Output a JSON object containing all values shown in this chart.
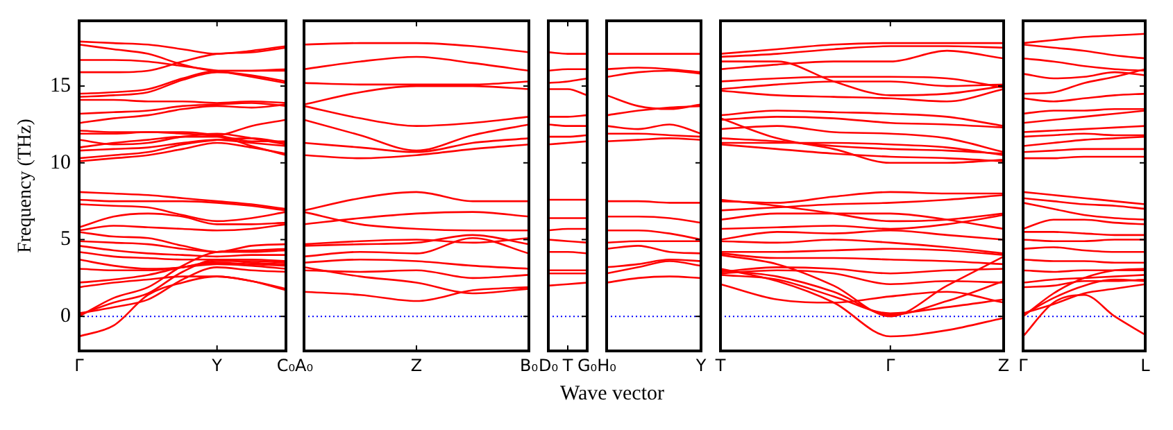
{
  "chart_data": [
    {
      "type": "line",
      "ylabel": "Frequency (THz)",
      "ylim": [
        -2.25,
        19.25
      ],
      "yticks": [
        0,
        5,
        10,
        15
      ],
      "categories": [
        "Γ",
        null,
        null,
        null,
        "Y",
        null,
        "C₀"
      ],
      "marker": "none",
      "ref_lines": [
        {
          "axis": "y",
          "value": 0,
          "color": "#0000ff",
          "line_style": "dotted"
        }
      ],
      "series": [
        {
          "color": "#ff0000",
          "values": [
            17.9,
            17.8,
            17.7,
            17.4,
            17.1,
            17.3,
            17.6
          ]
        },
        {
          "color": "#ff0000",
          "values": [
            17.7,
            17.4,
            17.1,
            16.4,
            16.0,
            16.0,
            16.1
          ]
        },
        {
          "color": "#ff0000",
          "values": [
            16.7,
            16.7,
            16.6,
            16.3,
            16.0,
            15.6,
            15.2
          ]
        },
        {
          "color": "#ff0000",
          "values": [
            15.9,
            15.9,
            16.0,
            16.6,
            17.1,
            17.2,
            17.5
          ]
        },
        {
          "color": "#ff0000",
          "values": [
            14.5,
            14.6,
            14.8,
            15.5,
            16.0,
            16.0,
            16.0
          ]
        },
        {
          "color": "#ff0000",
          "values": [
            14.3,
            14.4,
            14.6,
            15.4,
            15.9,
            15.7,
            15.3
          ]
        },
        {
          "color": "#ff0000",
          "values": [
            14.1,
            14.1,
            14.0,
            14.0,
            13.9,
            14.0,
            13.9
          ]
        },
        {
          "color": "#ff0000",
          "values": [
            13.2,
            13.3,
            13.4,
            13.7,
            13.8,
            13.9,
            13.7
          ]
        },
        {
          "color": "#ff0000",
          "values": [
            12.6,
            12.9,
            13.1,
            13.5,
            13.7,
            13.6,
            13.8
          ]
        },
        {
          "color": "#ff0000",
          "values": [
            12.1,
            12.0,
            12.0,
            11.9,
            11.8,
            12.4,
            12.8
          ]
        },
        {
          "color": "#ff0000",
          "values": [
            11.9,
            11.9,
            12.0,
            12.0,
            11.8,
            11.4,
            11.4
          ]
        },
        {
          "color": "#ff0000",
          "values": [
            11.5,
            11.2,
            11.3,
            11.7,
            11.9,
            11.6,
            11.2
          ]
        },
        {
          "color": "#ff0000",
          "values": [
            11.0,
            11.3,
            11.5,
            11.7,
            11.7,
            11.1,
            10.5
          ]
        },
        {
          "color": "#ff0000",
          "values": [
            10.8,
            10.9,
            11.0,
            11.3,
            11.5,
            11.3,
            11.1
          ]
        },
        {
          "color": "#ff0000",
          "values": [
            10.3,
            10.5,
            10.7,
            11.2,
            11.5,
            11.6,
            11.3
          ]
        },
        {
          "color": "#ff0000",
          "values": [
            10.1,
            10.3,
            10.5,
            10.9,
            11.3,
            11.0,
            10.6
          ]
        },
        {
          "color": "#ff0000",
          "values": [
            8.1,
            8.0,
            7.9,
            7.7,
            7.5,
            7.3,
            7.0
          ]
        },
        {
          "color": "#ff0000",
          "values": [
            7.6,
            7.5,
            7.5,
            7.5,
            7.4,
            7.2,
            6.9
          ]
        },
        {
          "color": "#ff0000",
          "values": [
            7.3,
            7.2,
            7.1,
            6.6,
            6.2,
            6.4,
            6.8
          ]
        },
        {
          "color": "#ff0000",
          "values": [
            5.8,
            6.5,
            6.7,
            6.5,
            6.0,
            6.0,
            6.1
          ]
        },
        {
          "color": "#ff0000",
          "values": [
            5.6,
            5.9,
            5.8,
            5.7,
            5.6,
            5.7,
            6.0
          ]
        },
        {
          "color": "#ff0000",
          "values": [
            5.5,
            5.2,
            5.1,
            4.6,
            4.2,
            4.6,
            4.7
          ]
        },
        {
          "color": "#ff0000",
          "values": [
            4.9,
            4.8,
            4.7,
            4.4,
            4.2,
            4.2,
            4.3
          ]
        },
        {
          "color": "#ff0000",
          "values": [
            4.6,
            4.3,
            4.1,
            4.0,
            3.9,
            4.0,
            4.0
          ]
        },
        {
          "color": "#ff0000",
          "values": [
            4.2,
            3.9,
            3.8,
            3.7,
            3.7,
            3.7,
            3.6
          ]
        },
        {
          "color": "#ff0000",
          "values": [
            3.7,
            3.3,
            3.1,
            3.2,
            3.6,
            3.6,
            3.5
          ]
        },
        {
          "color": "#ff0000",
          "values": [
            3.1,
            3.0,
            3.0,
            3.2,
            3.4,
            3.3,
            3.1
          ]
        },
        {
          "color": "#ff0000",
          "values": [
            2.2,
            2.4,
            2.7,
            3.2,
            3.5,
            3.4,
            3.3
          ]
        },
        {
          "color": "#ff0000",
          "values": [
            1.9,
            2.2,
            2.4,
            2.6,
            2.6,
            2.3,
            1.8
          ]
        },
        {
          "color": "#ff0000",
          "values": [
            0,
            1.2,
            1.9,
            3.3,
            4.2,
            4.3,
            4.4
          ]
        },
        {
          "color": "#ff0000",
          "values": [
            0.1,
            0.9,
            1.5,
            2.9,
            3.7,
            3.5,
            3.4
          ]
        },
        {
          "color": "#ff0000",
          "values": [
            0.2,
            0.6,
            1.1,
            2.4,
            3.2,
            3.0,
            2.9
          ]
        },
        {
          "color": "#ff0000",
          "values": [
            -1.3,
            -0.6,
            1.4,
            2.2,
            2.6,
            2.3,
            1.7
          ]
        }
      ]
    },
    {
      "type": "line",
      "tick_labels": "x",
      "ylim": [
        -2.25,
        19.25
      ],
      "yticks": [
        0,
        5,
        10,
        15
      ],
      "categories": [
        "A₀",
        null,
        "Z",
        null,
        "B₀"
      ],
      "marker": "none",
      "ref_lines": [
        {
          "axis": "y",
          "value": 0,
          "color": "#0000ff",
          "line_style": "dotted"
        }
      ],
      "series": [
        {
          "color": "#ff0000",
          "values": [
            17.7,
            17.8,
            17.8,
            17.6,
            17.2
          ]
        },
        {
          "color": "#ff0000",
          "values": [
            16.1,
            16.6,
            16.9,
            16.5,
            16.0
          ]
        },
        {
          "color": "#ff0000",
          "values": [
            15.2,
            15.1,
            15.1,
            15.1,
            15.3
          ]
        },
        {
          "color": "#ff0000",
          "values": [
            13.8,
            14.6,
            15.0,
            15.0,
            14.8
          ]
        },
        {
          "color": "#ff0000",
          "values": [
            13.7,
            12.9,
            12.4,
            12.6,
            13.0
          ]
        },
        {
          "color": "#ff0000",
          "values": [
            12.8,
            11.8,
            10.8,
            11.8,
            12.5
          ]
        },
        {
          "color": "#ff0000",
          "values": [
            11.3,
            11.0,
            10.7,
            11.3,
            11.6
          ]
        },
        {
          "color": "#ff0000",
          "values": [
            10.5,
            10.3,
            10.5,
            10.9,
            11.2
          ]
        },
        {
          "color": "#ff0000",
          "values": [
            6.9,
            7.7,
            8.1,
            7.5,
            7.5
          ]
        },
        {
          "color": "#ff0000",
          "values": [
            6.8,
            6.0,
            5.7,
            5.6,
            5.6
          ]
        },
        {
          "color": "#ff0000",
          "values": [
            6.0,
            6.4,
            6.7,
            6.8,
            6.5
          ]
        },
        {
          "color": "#ff0000",
          "values": [
            4.7,
            4.9,
            5.0,
            4.8,
            5.1
          ]
        },
        {
          "color": "#ff0000",
          "values": [
            4.6,
            4.7,
            4.8,
            5.3,
            4.7
          ]
        },
        {
          "color": "#ff0000",
          "values": [
            3.9,
            4.2,
            4.1,
            5.1,
            4.1
          ]
        },
        {
          "color": "#ff0000",
          "values": [
            3.5,
            3.7,
            3.6,
            3.3,
            3.1
          ]
        },
        {
          "color": "#ff0000",
          "values": [
            3.0,
            2.9,
            3.0,
            2.5,
            2.7
          ]
        },
        {
          "color": "#ff0000",
          "values": [
            1.6,
            1.4,
            1.0,
            1.7,
            1.9
          ]
        },
        {
          "color": "#ff0000",
          "values": [
            3.2,
            2.6,
            2.2,
            1.5,
            1.8
          ]
        }
      ]
    },
    {
      "type": "line",
      "tick_labels": "x",
      "xlabel": "Wave vector",
      "ylim": [
        -2.25,
        19.25
      ],
      "yticks": [
        0,
        5,
        10,
        15
      ],
      "categories": [
        "D₀",
        "T",
        "G₀"
      ],
      "marker": "none",
      "ref_lines": [
        {
          "axis": "y",
          "value": 0,
          "color": "#0000ff",
          "line_style": "dotted"
        }
      ],
      "series": [
        {
          "color": "#ff0000",
          "values": [
            17.2,
            17.1,
            17.1
          ]
        },
        {
          "color": "#ff0000",
          "values": [
            16.0,
            16.1,
            16.1
          ]
        },
        {
          "color": "#ff0000",
          "values": [
            15.2,
            15.3,
            15.5
          ]
        },
        {
          "color": "#ff0000",
          "values": [
            14.8,
            14.8,
            14.4
          ]
        },
        {
          "color": "#ff0000",
          "values": [
            13.0,
            13.0,
            13.1
          ]
        },
        {
          "color": "#ff0000",
          "values": [
            12.5,
            12.4,
            12.4
          ]
        },
        {
          "color": "#ff0000",
          "values": [
            11.7,
            11.7,
            11.8
          ]
        },
        {
          "color": "#ff0000",
          "values": [
            11.2,
            11.3,
            11.4
          ]
        },
        {
          "color": "#ff0000",
          "values": [
            7.6,
            7.6,
            7.6
          ]
        },
        {
          "color": "#ff0000",
          "values": [
            6.4,
            6.4,
            6.4
          ]
        },
        {
          "color": "#ff0000",
          "values": [
            5.6,
            5.7,
            5.7
          ]
        },
        {
          "color": "#ff0000",
          "values": [
            5.0,
            4.9,
            4.8
          ]
        },
        {
          "color": "#ff0000",
          "values": [
            4.2,
            4.2,
            4.1
          ]
        },
        {
          "color": "#ff0000",
          "values": [
            3.0,
            3.0,
            3.0
          ]
        },
        {
          "color": "#ff0000",
          "values": [
            2.8,
            2.8,
            2.8
          ]
        },
        {
          "color": "#ff0000",
          "values": [
            2.0,
            2.1,
            2.2
          ]
        }
      ]
    },
    {
      "type": "line",
      "tick_labels": "x",
      "ylim": [
        -2.25,
        19.25
      ],
      "yticks": [
        0,
        5,
        10,
        15
      ],
      "categories": [
        "H₀",
        null,
        null,
        "Y"
      ],
      "marker": "none",
      "ref_lines": [
        {
          "axis": "y",
          "value": 0,
          "color": "#0000ff",
          "line_style": "dotted"
        }
      ],
      "series": [
        {
          "color": "#ff0000",
          "values": [
            17.1,
            17.1,
            17.1,
            17.1
          ]
        },
        {
          "color": "#ff0000",
          "values": [
            16.1,
            16.2,
            16.1,
            15.9
          ]
        },
        {
          "color": "#ff0000",
          "values": [
            15.6,
            15.9,
            16.0,
            15.8
          ]
        },
        {
          "color": "#ff0000",
          "values": [
            14.4,
            13.7,
            13.5,
            13.8
          ]
        },
        {
          "color": "#ff0000",
          "values": [
            13.1,
            13.4,
            13.6,
            13.7
          ]
        },
        {
          "color": "#ff0000",
          "values": [
            12.4,
            12.2,
            12.5,
            11.9
          ]
        },
        {
          "color": "#ff0000",
          "values": [
            11.9,
            11.9,
            11.8,
            11.7
          ]
        },
        {
          "color": "#ff0000",
          "values": [
            11.4,
            11.5,
            11.6,
            11.5
          ]
        },
        {
          "color": "#ff0000",
          "values": [
            7.5,
            7.5,
            7.4,
            7.4
          ]
        },
        {
          "color": "#ff0000",
          "values": [
            6.5,
            6.5,
            6.4,
            6.1
          ]
        },
        {
          "color": "#ff0000",
          "values": [
            5.6,
            5.6,
            5.4,
            5.0
          ]
        },
        {
          "color": "#ff0000",
          "values": [
            4.8,
            4.9,
            4.9,
            4.9
          ]
        },
        {
          "color": "#ff0000",
          "values": [
            4.4,
            4.6,
            4.2,
            4.1
          ]
        },
        {
          "color": "#ff0000",
          "values": [
            3.2,
            3.4,
            3.7,
            3.6
          ]
        },
        {
          "color": "#ff0000",
          "values": [
            2.8,
            3.2,
            3.6,
            3.3
          ]
        },
        {
          "color": "#ff0000",
          "values": [
            2.2,
            2.5,
            2.6,
            2.5
          ]
        }
      ]
    },
    {
      "type": "line",
      "tick_labels": "x",
      "ylim": [
        -2.25,
        19.25
      ],
      "yticks": [
        0,
        5,
        10,
        15
      ],
      "categories": [
        "T",
        null,
        null,
        "Γ",
        null,
        "Z"
      ],
      "marker": "none",
      "ref_lines": [
        {
          "axis": "y",
          "value": 0,
          "color": "#0000ff",
          "line_style": "dotted"
        }
      ],
      "series": [
        {
          "color": "#ff0000",
          "values": [
            17.1,
            17.4,
            17.7,
            17.8,
            17.8,
            17.8
          ]
        },
        {
          "color": "#ff0000",
          "values": [
            16.9,
            17.1,
            17.4,
            17.6,
            17.6,
            17.5
          ]
        },
        {
          "color": "#ff0000",
          "values": [
            16.6,
            16.6,
            15.3,
            14.4,
            14.5,
            15.0
          ]
        },
        {
          "color": "#ff0000",
          "values": [
            16.1,
            16.4,
            16.6,
            16.6,
            17.3,
            16.8
          ]
        },
        {
          "color": "#ff0000",
          "values": [
            15.3,
            15.5,
            15.6,
            15.6,
            15.5,
            14.9
          ]
        },
        {
          "color": "#ff0000",
          "values": [
            14.8,
            15.1,
            15.3,
            15.3,
            15.0,
            15.1
          ]
        },
        {
          "color": "#ff0000",
          "values": [
            14.7,
            14.4,
            14.3,
            14.2,
            14.0,
            14.8
          ]
        },
        {
          "color": "#ff0000",
          "values": [
            13.1,
            13.4,
            13.3,
            13.2,
            13.0,
            12.4
          ]
        },
        {
          "color": "#ff0000",
          "values": [
            12.8,
            13.0,
            12.9,
            12.6,
            12.5,
            12.3
          ]
        },
        {
          "color": "#ff0000",
          "values": [
            12.2,
            12.4,
            12.0,
            11.9,
            11.6,
            10.7
          ]
        },
        {
          "color": "#ff0000",
          "values": [
            11.6,
            11.4,
            11.1,
            10.9,
            10.8,
            10.6
          ]
        },
        {
          "color": "#ff0000",
          "values": [
            11.3,
            11.3,
            11.3,
            11.2,
            11.0,
            10.5
          ]
        },
        {
          "color": "#ff0000",
          "values": [
            11.2,
            10.9,
            10.6,
            10.4,
            10.3,
            10.1
          ]
        },
        {
          "color": "#ff0000",
          "values": [
            12.9,
            11.6,
            10.9,
            10.0,
            10.0,
            10.2
          ]
        },
        {
          "color": "#ff0000",
          "values": [
            7.6,
            7.2,
            6.7,
            6.2,
            6.3,
            6.7
          ]
        },
        {
          "color": "#ff0000",
          "values": [
            7.5,
            7.4,
            7.8,
            8.1,
            8.0,
            8.0
          ]
        },
        {
          "color": "#ff0000",
          "values": [
            6.9,
            7.1,
            7.3,
            7.4,
            7.6,
            7.9
          ]
        },
        {
          "color": "#ff0000",
          "values": [
            6.3,
            6.7,
            6.7,
            6.7,
            6.3,
            5.7
          ]
        },
        {
          "color": "#ff0000",
          "values": [
            5.7,
            5.8,
            5.9,
            5.7,
            6.0,
            6.6
          ]
        },
        {
          "color": "#ff0000",
          "values": [
            5.0,
            5.5,
            5.4,
            5.6,
            5.3,
            5.0
          ]
        },
        {
          "color": "#ff0000",
          "values": [
            4.9,
            4.8,
            5.0,
            4.8,
            4.5,
            4.1
          ]
        },
        {
          "color": "#ff0000",
          "values": [
            4.2,
            4.2,
            4.3,
            4.4,
            4.3,
            4.0
          ]
        },
        {
          "color": "#ff0000",
          "values": [
            4.1,
            3.8,
            3.8,
            3.7,
            3.6,
            3.4
          ]
        },
        {
          "color": "#ff0000",
          "values": [
            2.9,
            3.2,
            3.1,
            2.8,
            3.0,
            3.1
          ]
        },
        {
          "color": "#ff0000",
          "values": [
            2.8,
            3.0,
            2.8,
            2.1,
            2.3,
            2.2
          ]
        },
        {
          "color": "#ff0000",
          "values": [
            2.1,
            1.1,
            0.9,
            1.3,
            1.6,
            0.9
          ]
        },
        {
          "color": "#ff0000",
          "values": [
            4.0,
            3.4,
            2.0,
            0,
            2.0,
            3.9
          ]
        },
        {
          "color": "#ff0000",
          "values": [
            3.0,
            2.6,
            1.6,
            0.1,
            1.0,
            2.3
          ]
        },
        {
          "color": "#ff0000",
          "values": [
            2.7,
            2.4,
            1.3,
            0.2,
            0.6,
            1.1
          ]
        },
        {
          "color": "#ff0000",
          "values": [
            3.1,
            2.3,
            0.9,
            -1.3,
            -0.9,
            -0.1
          ]
        }
      ]
    },
    {
      "type": "line",
      "tick_labels": "x",
      "ylim": [
        -2.25,
        19.25
      ],
      "yticks": [
        0,
        5,
        10,
        15
      ],
      "categories": [
        "Γ",
        null,
        null,
        null,
        "L"
      ],
      "marker": "none",
      "ref_lines": [
        {
          "axis": "y",
          "value": 0,
          "color": "#0000ff",
          "line_style": "dotted"
        }
      ],
      "series": [
        {
          "color": "#ff0000",
          "values": [
            17.8,
            18.0,
            18.2,
            18.3,
            18.4
          ]
        },
        {
          "color": "#ff0000",
          "values": [
            17.7,
            17.5,
            17.3,
            17.0,
            16.8
          ]
        },
        {
          "color": "#ff0000",
          "values": [
            16.8,
            16.6,
            16.3,
            16.1,
            16.0
          ]
        },
        {
          "color": "#ff0000",
          "values": [
            15.8,
            15.5,
            15.6,
            15.9,
            15.7
          ]
        },
        {
          "color": "#ff0000",
          "values": [
            14.5,
            14.6,
            15.2,
            15.6,
            16.1
          ]
        },
        {
          "color": "#ff0000",
          "values": [
            14.2,
            14.0,
            14.2,
            14.4,
            14.5
          ]
        },
        {
          "color": "#ff0000",
          "values": [
            13.2,
            13.4,
            13.4,
            13.5,
            13.5
          ]
        },
        {
          "color": "#ff0000",
          "values": [
            12.6,
            12.8,
            13.0,
            13.2,
            13.4
          ]
        },
        {
          "color": "#ff0000",
          "values": [
            12.0,
            12.1,
            12.2,
            12.3,
            12.4
          ]
        },
        {
          "color": "#ff0000",
          "values": [
            11.7,
            11.8,
            11.9,
            11.8,
            11.8
          ]
        },
        {
          "color": "#ff0000",
          "values": [
            11.1,
            11.3,
            11.5,
            11.6,
            11.7
          ]
        },
        {
          "color": "#ff0000",
          "values": [
            10.7,
            10.8,
            10.9,
            10.9,
            10.9
          ]
        },
        {
          "color": "#ff0000",
          "values": [
            10.3,
            10.3,
            10.4,
            10.4,
            10.4
          ]
        },
        {
          "color": "#ff0000",
          "values": [
            8.1,
            7.9,
            7.7,
            7.5,
            7.3
          ]
        },
        {
          "color": "#ff0000",
          "values": [
            7.7,
            7.5,
            7.3,
            7.2,
            7.0
          ]
        },
        {
          "color": "#ff0000",
          "values": [
            7.4,
            7.0,
            6.6,
            6.4,
            6.3
          ]
        },
        {
          "color": "#ff0000",
          "values": [
            5.7,
            6.3,
            6.3,
            6.1,
            6.0
          ]
        },
        {
          "color": "#ff0000",
          "values": [
            5.5,
            5.5,
            5.4,
            5.3,
            5.3
          ]
        },
        {
          "color": "#ff0000",
          "values": [
            5.0,
            4.9,
            4.9,
            5.0,
            5.0
          ]
        },
        {
          "color": "#ff0000",
          "values": [
            4.4,
            4.5,
            4.3,
            4.2,
            4.2
          ]
        },
        {
          "color": "#ff0000",
          "values": [
            3.7,
            3.6,
            3.6,
            3.5,
            3.5
          ]
        },
        {
          "color": "#ff0000",
          "values": [
            3.0,
            2.9,
            3.0,
            3.0,
            3.0
          ]
        },
        {
          "color": "#ff0000",
          "values": [
            2.2,
            2.4,
            2.5,
            2.6,
            2.7
          ]
        },
        {
          "color": "#ff0000",
          "values": [
            1.9,
            2.0,
            2.3,
            2.3,
            2.4
          ]
        },
        {
          "color": "#ff0000",
          "values": [
            0,
            1.5,
            2.5,
            3.0,
            3.1
          ]
        },
        {
          "color": "#ff0000",
          "values": [
            0.1,
            1.2,
            2.0,
            2.4,
            2.3
          ]
        },
        {
          "color": "#ff0000",
          "values": [
            0.2,
            0.8,
            1.5,
            1.8,
            2.1
          ]
        },
        {
          "color": "#ff0000",
          "values": [
            -1.3,
            0.9,
            1.4,
            0.0,
            -1.2
          ]
        }
      ]
    }
  ]
}
